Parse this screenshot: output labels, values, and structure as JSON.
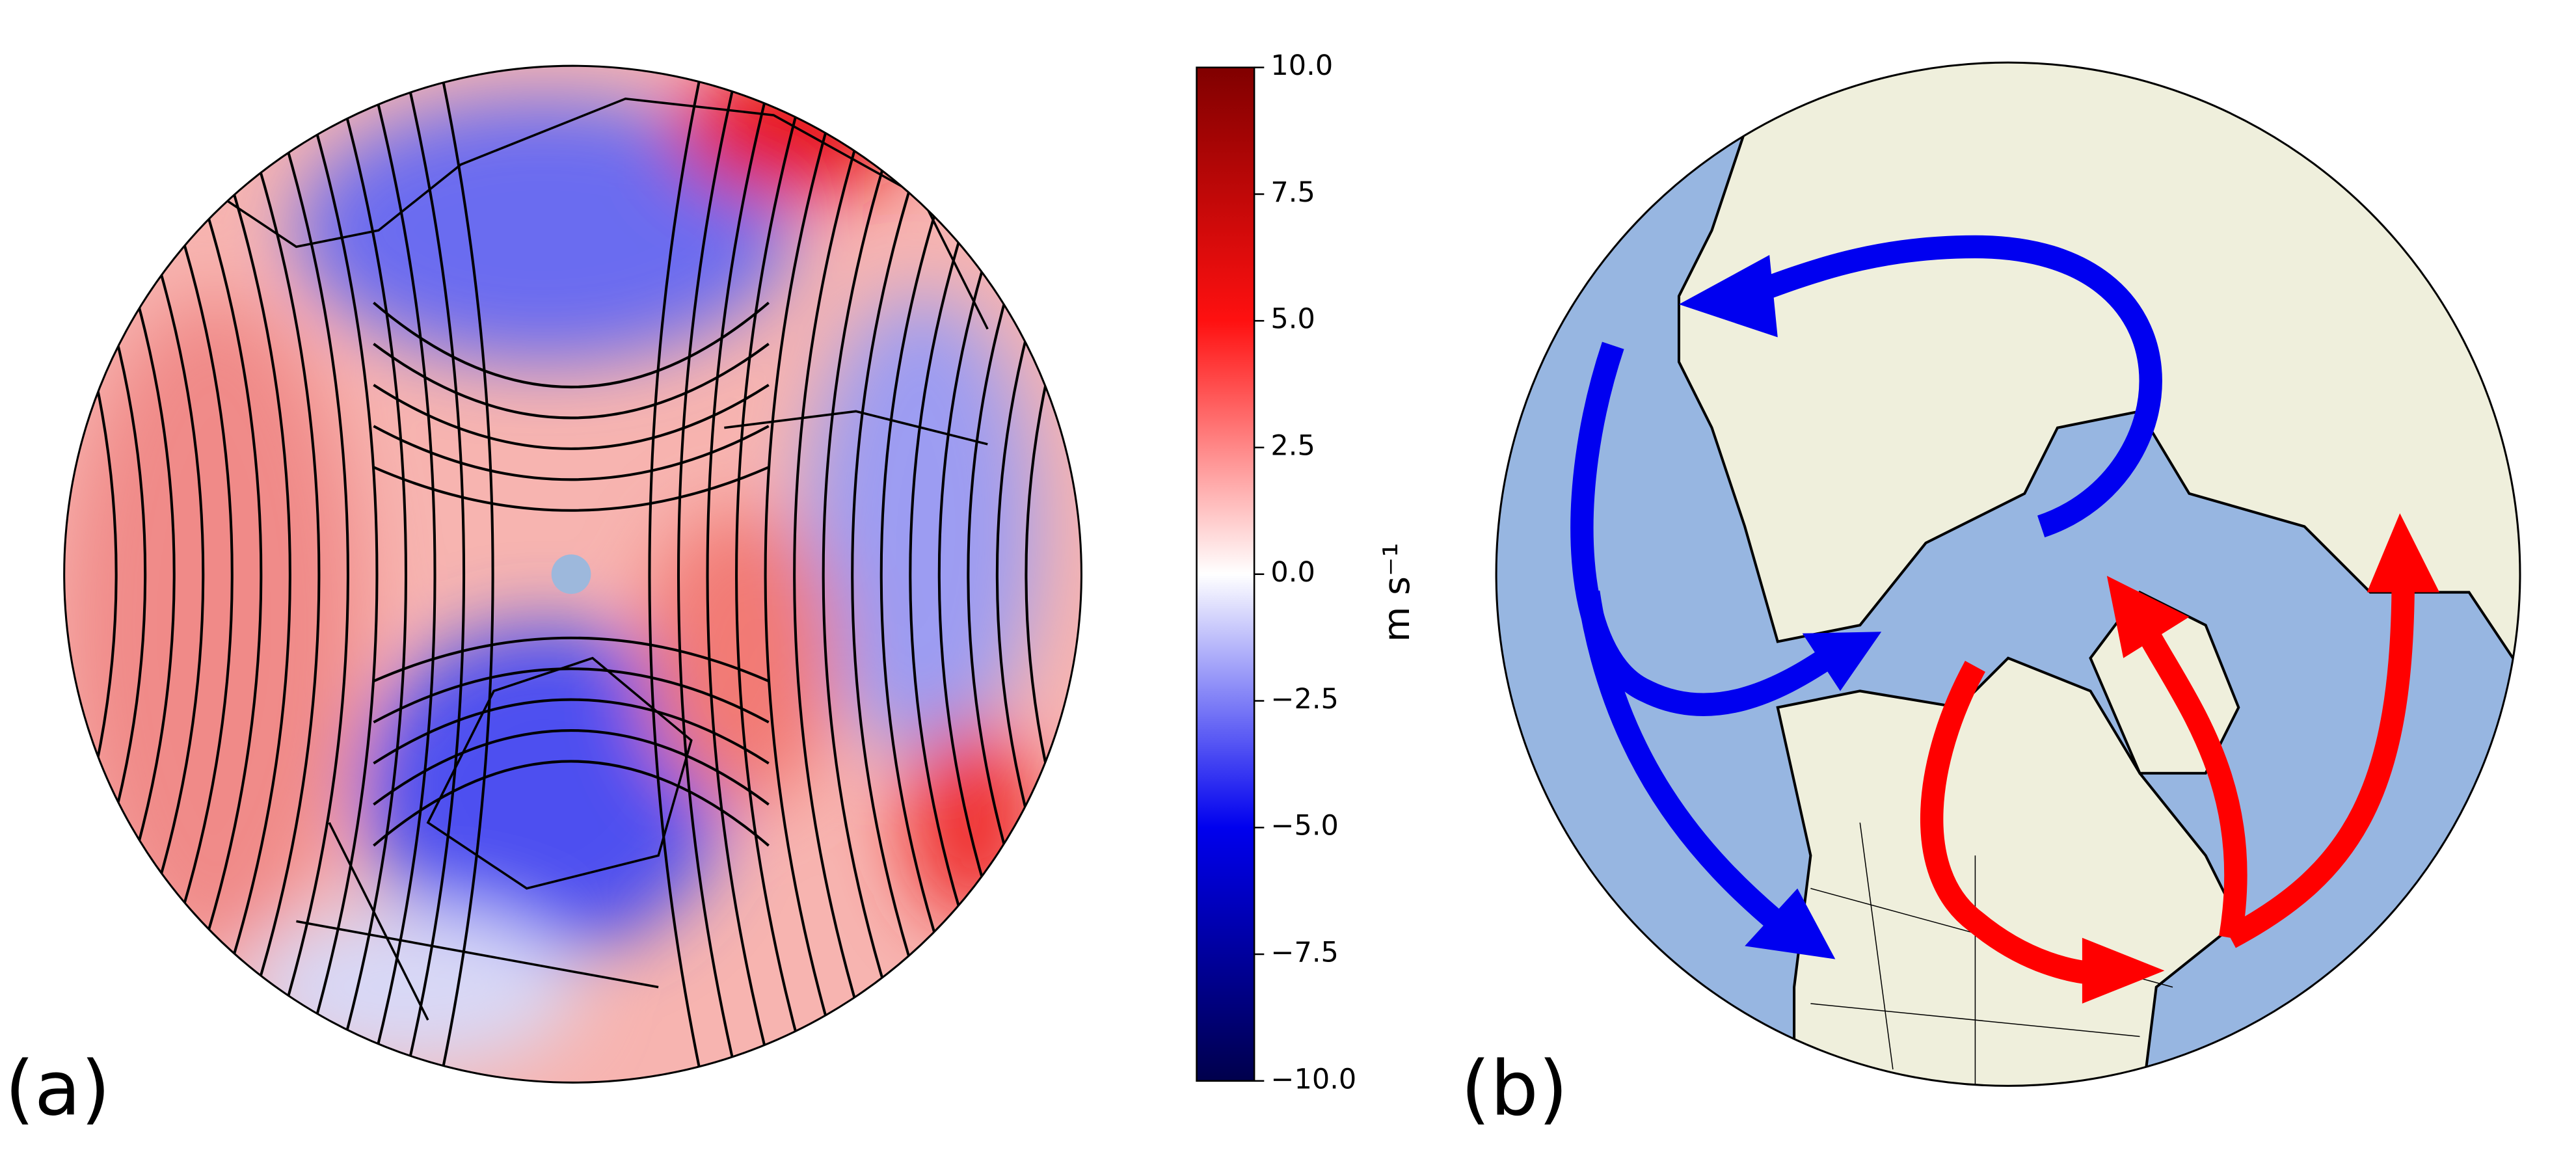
{
  "panels": {
    "a": "(a)",
    "b": "(b)"
  },
  "colorbar": {
    "label": "m s⁻¹",
    "lim": [
      -10,
      10
    ],
    "ticks": [
      {
        "value": -10,
        "label": "−10.0"
      },
      {
        "value": -7.5,
        "label": "−7.5"
      },
      {
        "value": -5,
        "label": "−5.0"
      },
      {
        "value": -2.5,
        "label": "−2.5"
      },
      {
        "value": 0,
        "label": "0.0"
      },
      {
        "value": 2.5,
        "label": "2.5"
      },
      {
        "value": 5,
        "label": "5.0"
      },
      {
        "value": 7.5,
        "label": "7.5"
      },
      {
        "value": 10,
        "label": "10.0"
      }
    ]
  }
}
